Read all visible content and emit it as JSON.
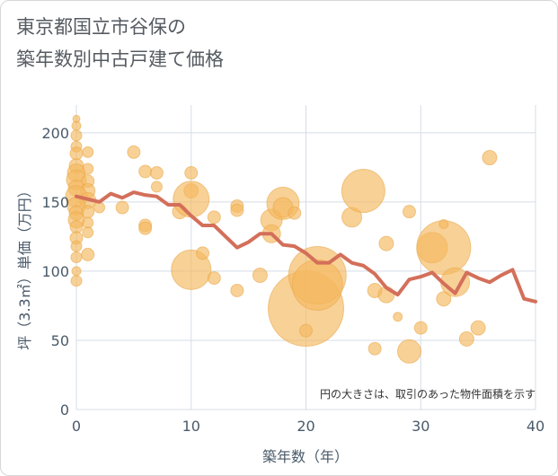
{
  "title_line1": "東京都国立市谷保の",
  "title_line2": "築年数別中古戸建て価格",
  "note": "円の大きさは、取引のあった物件面積を示す",
  "chart_data": {
    "type": "scatter",
    "xlabel": "築年数（年）",
    "ylabel": "坪（3.3㎡）単価（万円）",
    "xlim": [
      0,
      40
    ],
    "ylim": [
      0,
      220
    ],
    "xticks": [
      0,
      10,
      20,
      30,
      40
    ],
    "yticks": [
      0,
      50,
      100,
      150,
      200
    ],
    "grid": true,
    "colors": {
      "bubble": "#f5b95f",
      "line": "#d36f5a",
      "grid": "#d5dde6"
    },
    "bubbles": [
      {
        "x": 0,
        "y": 210,
        "s": 4
      },
      {
        "x": 0,
        "y": 205,
        "s": 5
      },
      {
        "x": 0,
        "y": 198,
        "s": 6
      },
      {
        "x": 0,
        "y": 190,
        "s": 6
      },
      {
        "x": 0,
        "y": 185,
        "s": 7
      },
      {
        "x": 1,
        "y": 186,
        "s": 6
      },
      {
        "x": 0,
        "y": 176,
        "s": 8
      },
      {
        "x": 0,
        "y": 171,
        "s": 10
      },
      {
        "x": 1,
        "y": 174,
        "s": 6
      },
      {
        "x": 0,
        "y": 166,
        "s": 11
      },
      {
        "x": 1,
        "y": 165,
        "s": 7
      },
      {
        "x": 0,
        "y": 160,
        "s": 9
      },
      {
        "x": 1,
        "y": 158,
        "s": 8
      },
      {
        "x": 0,
        "y": 154,
        "s": 12
      },
      {
        "x": 1,
        "y": 151,
        "s": 9
      },
      {
        "x": 0,
        "y": 147,
        "s": 10
      },
      {
        "x": 0,
        "y": 142,
        "s": 8
      },
      {
        "x": 1,
        "y": 143,
        "s": 7
      },
      {
        "x": 0,
        "y": 137,
        "s": 9
      },
      {
        "x": 1,
        "y": 135,
        "s": 6
      },
      {
        "x": 0,
        "y": 132,
        "s": 7
      },
      {
        "x": 1,
        "y": 128,
        "s": 6
      },
      {
        "x": 0,
        "y": 124,
        "s": 7
      },
      {
        "x": 0,
        "y": 118,
        "s": 6
      },
      {
        "x": 1,
        "y": 112,
        "s": 7
      },
      {
        "x": 0,
        "y": 110,
        "s": 6
      },
      {
        "x": 0,
        "y": 100,
        "s": 5
      },
      {
        "x": 0,
        "y": 93,
        "s": 6
      },
      {
        "x": 2,
        "y": 146,
        "s": 6
      },
      {
        "x": 4,
        "y": 146,
        "s": 7
      },
      {
        "x": 5,
        "y": 186,
        "s": 7
      },
      {
        "x": 6,
        "y": 172,
        "s": 7
      },
      {
        "x": 6,
        "y": 133,
        "s": 7
      },
      {
        "x": 6,
        "y": 131,
        "s": 7
      },
      {
        "x": 7,
        "y": 171,
        "s": 7
      },
      {
        "x": 7,
        "y": 161,
        "s": 6
      },
      {
        "x": 9,
        "y": 143,
        "s": 8
      },
      {
        "x": 10,
        "y": 171,
        "s": 7
      },
      {
        "x": 10,
        "y": 158,
        "s": 8
      },
      {
        "x": 10,
        "y": 152,
        "s": 20
      },
      {
        "x": 10,
        "y": 101,
        "s": 22
      },
      {
        "x": 11,
        "y": 113,
        "s": 7
      },
      {
        "x": 12,
        "y": 139,
        "s": 7
      },
      {
        "x": 12,
        "y": 95,
        "s": 7
      },
      {
        "x": 14,
        "y": 147,
        "s": 7
      },
      {
        "x": 14,
        "y": 144,
        "s": 7
      },
      {
        "x": 14,
        "y": 86,
        "s": 7
      },
      {
        "x": 16,
        "y": 97,
        "s": 8
      },
      {
        "x": 17,
        "y": 137,
        "s": 12
      },
      {
        "x": 17,
        "y": 127,
        "s": 10
      },
      {
        "x": 18,
        "y": 149,
        "s": 18
      },
      {
        "x": 18,
        "y": 146,
        "s": 11
      },
      {
        "x": 19,
        "y": 142,
        "s": 7
      },
      {
        "x": 20,
        "y": 73,
        "s": 42
      },
      {
        "x": 20,
        "y": 57,
        "s": 7
      },
      {
        "x": 21,
        "y": 97,
        "s": 32
      },
      {
        "x": 21,
        "y": 90,
        "s": 28
      },
      {
        "x": 24,
        "y": 139,
        "s": 11
      },
      {
        "x": 25,
        "y": 158,
        "s": 24
      },
      {
        "x": 26,
        "y": 86,
        "s": 8
      },
      {
        "x": 26,
        "y": 44,
        "s": 7
      },
      {
        "x": 27,
        "y": 120,
        "s": 8
      },
      {
        "x": 27,
        "y": 83,
        "s": 9
      },
      {
        "x": 28,
        "y": 67,
        "s": 5
      },
      {
        "x": 29,
        "y": 143,
        "s": 7
      },
      {
        "x": 29,
        "y": 42,
        "s": 13
      },
      {
        "x": 30,
        "y": 59,
        "s": 7
      },
      {
        "x": 31,
        "y": 117,
        "s": 17
      },
      {
        "x": 32,
        "y": 117,
        "s": 30
      },
      {
        "x": 32,
        "y": 134,
        "s": 5
      },
      {
        "x": 32,
        "y": 80,
        "s": 8
      },
      {
        "x": 33,
        "y": 92,
        "s": 16
      },
      {
        "x": 34,
        "y": 51,
        "s": 8
      },
      {
        "x": 35,
        "y": 59,
        "s": 8
      },
      {
        "x": 36,
        "y": 182,
        "s": 8
      }
    ],
    "line": {
      "x": [
        0,
        1,
        2,
        3,
        4,
        5,
        6,
        7,
        8,
        9,
        10,
        11,
        12,
        13,
        14,
        15,
        16,
        17,
        18,
        19,
        20,
        21,
        22,
        23,
        24,
        25,
        26,
        27,
        28,
        29,
        30,
        31,
        32,
        33,
        34,
        35,
        36,
        37,
        38,
        39,
        40
      ],
      "y": [
        154,
        152,
        150,
        156,
        153,
        157,
        155,
        154,
        148,
        148,
        140,
        133,
        133,
        125,
        117,
        121,
        127,
        127,
        119,
        118,
        113,
        106,
        106,
        112,
        106,
        104,
        98,
        88,
        83,
        94,
        96,
        99,
        91,
        84,
        99,
        95,
        92,
        97,
        101,
        80,
        78
      ]
    }
  }
}
